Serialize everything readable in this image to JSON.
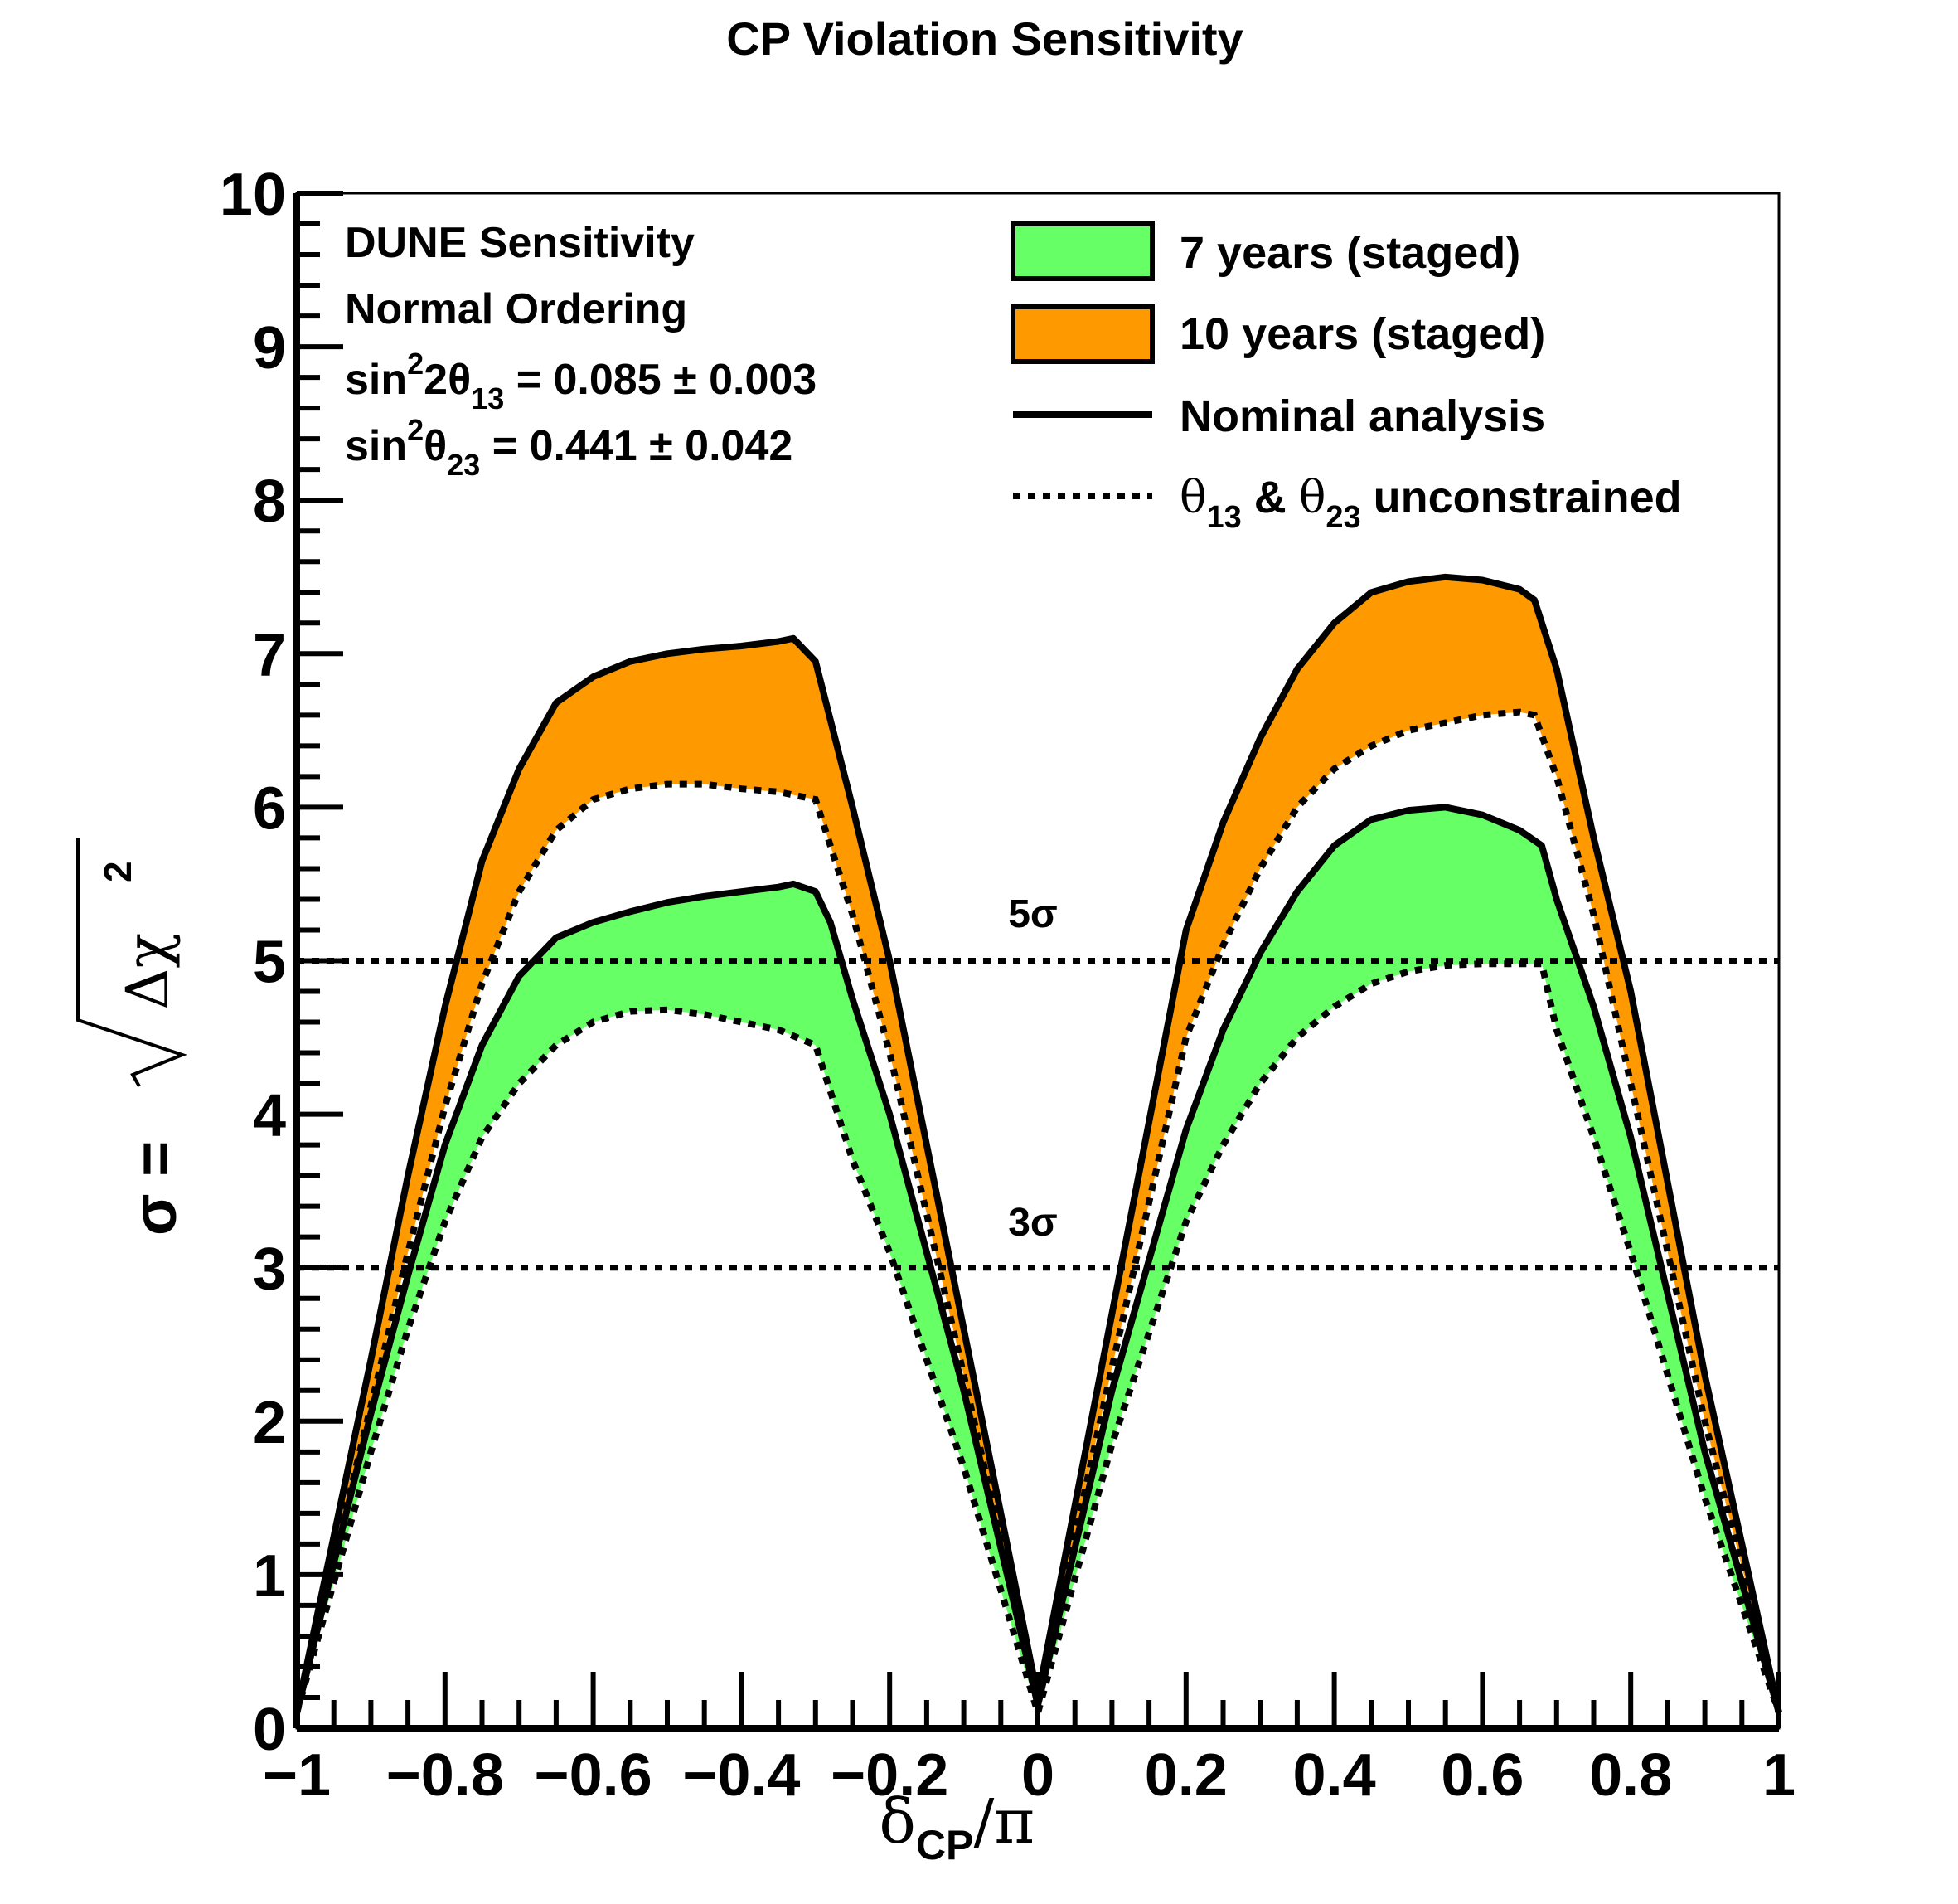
{
  "chart_data": {
    "type": "area",
    "title": "CP Violation Sensitivity",
    "xlabel": {
      "main": "δ",
      "sub": "CP",
      "suffix": "/π"
    },
    "ylabel": {
      "prefix": "σ = ",
      "radicand": "Δχ",
      "sup": "2"
    },
    "xlim": [
      -1,
      1
    ],
    "ylim": [
      0,
      10
    ],
    "x_ticks": [
      {
        "v": -1,
        "label": "−1"
      },
      {
        "v": -0.8,
        "label": "−0.8"
      },
      {
        "v": -0.6,
        "label": "−0.6"
      },
      {
        "v": -0.4,
        "label": "−0.4"
      },
      {
        "v": -0.2,
        "label": "−0.2"
      },
      {
        "v": 0,
        "label": "0"
      },
      {
        "v": 0.2,
        "label": "0.2"
      },
      {
        "v": 0.4,
        "label": "0.4"
      },
      {
        "v": 0.6,
        "label": "0.6"
      },
      {
        "v": 0.8,
        "label": "0.8"
      },
      {
        "v": 1,
        "label": "1"
      }
    ],
    "y_ticks": [
      {
        "v": 0,
        "label": "0"
      },
      {
        "v": 1,
        "label": "1"
      },
      {
        "v": 2,
        "label": "2"
      },
      {
        "v": 3,
        "label": "3"
      },
      {
        "v": 4,
        "label": "4"
      },
      {
        "v": 5,
        "label": "5"
      },
      {
        "v": 6,
        "label": "6"
      },
      {
        "v": 7,
        "label": "7"
      },
      {
        "v": 8,
        "label": "8"
      },
      {
        "v": 9,
        "label": "9"
      },
      {
        "v": 10,
        "label": "10"
      }
    ],
    "annotation_lines": [
      {
        "y": 5,
        "label": "5σ"
      },
      {
        "y": 3,
        "label": "3σ"
      }
    ],
    "info_text": {
      "line1": "DUNE Sensitivity",
      "line2": "Normal Ordering",
      "line3": {
        "pre": "sin",
        "sup": "2",
        "mid": "2θ",
        "sub": "13",
        "post": " = 0.085 ± 0.003"
      },
      "line4": {
        "pre": "sin",
        "sup": "2",
        "mid": "θ",
        "sub": "23",
        "post": " = 0.441 ± 0.042"
      }
    },
    "legend": {
      "placement": "top-right",
      "entries": [
        {
          "kind": "fill",
          "color": "#66ff66",
          "label": "7 years (staged)"
        },
        {
          "kind": "fill",
          "color": "#ff9900",
          "label": "10 years (staged)"
        },
        {
          "kind": "solid",
          "label": "Nominal analysis"
        },
        {
          "kind": "dotted",
          "parts": [
            {
              "t": "θ",
              "sub": "13"
            },
            {
              "t": " & ",
              "sub": ""
            },
            {
              "t": "θ",
              "sub": "23"
            },
            {
              "t": " unconstrained",
              "sub": ""
            }
          ]
        }
      ]
    },
    "series": [
      {
        "name": "10 years (staged)",
        "color": "#ff9900",
        "nominal": {
          "x": [
            -1,
            -0.9,
            -0.85,
            -0.8,
            -0.75,
            -0.7,
            -0.65,
            -0.6,
            -0.55,
            -0.5,
            -0.45,
            -0.4,
            -0.35,
            -0.33,
            -0.3,
            -0.25,
            -0.2,
            -0.1,
            0,
            0.1,
            0.2,
            0.25,
            0.3,
            0.35,
            0.4,
            0.45,
            0.5,
            0.55,
            0.6,
            0.65,
            0.67,
            0.7,
            0.75,
            0.8,
            0.9,
            1
          ],
          "y": [
            0.1,
            2.4,
            3.6,
            4.7,
            5.65,
            6.25,
            6.68,
            6.85,
            6.95,
            7.0,
            7.03,
            7.05,
            7.08,
            7.1,
            6.95,
            6.0,
            5.0,
            2.6,
            0.2,
            2.7,
            5.2,
            5.9,
            6.45,
            6.9,
            7.2,
            7.4,
            7.47,
            7.5,
            7.48,
            7.42,
            7.35,
            6.9,
            5.8,
            4.8,
            2.3,
            0.1
          ]
        },
        "unconstrained": {
          "x": [
            -1,
            -0.9,
            -0.85,
            -0.8,
            -0.75,
            -0.7,
            -0.65,
            -0.6,
            -0.55,
            -0.5,
            -0.45,
            -0.4,
            -0.35,
            -0.3,
            -0.25,
            -0.2,
            -0.1,
            0,
            0.1,
            0.2,
            0.25,
            0.3,
            0.35,
            0.4,
            0.45,
            0.5,
            0.55,
            0.6,
            0.65,
            0.67,
            0.7,
            0.75,
            0.8,
            0.9,
            1
          ],
          "y": [
            0.1,
            2.1,
            3.1,
            4.05,
            4.85,
            5.45,
            5.85,
            6.05,
            6.12,
            6.15,
            6.15,
            6.12,
            6.1,
            6.05,
            5.3,
            4.4,
            2.3,
            0.15,
            2.35,
            4.5,
            5.1,
            5.6,
            6.0,
            6.25,
            6.4,
            6.5,
            6.55,
            6.6,
            6.62,
            6.6,
            6.2,
            5.3,
            4.2,
            2.0,
            0.1
          ]
        }
      },
      {
        "name": "7 years (staged)",
        "color": "#66ff66",
        "nominal": {
          "x": [
            -1,
            -0.9,
            -0.85,
            -0.8,
            -0.75,
            -0.7,
            -0.65,
            -0.6,
            -0.55,
            -0.5,
            -0.45,
            -0.4,
            -0.35,
            -0.33,
            -0.3,
            -0.28,
            -0.25,
            -0.2,
            -0.1,
            0,
            0.1,
            0.2,
            0.25,
            0.3,
            0.35,
            0.4,
            0.45,
            0.5,
            0.55,
            0.6,
            0.65,
            0.68,
            0.7,
            0.75,
            0.8,
            0.9,
            1
          ],
          "y": [
            0.1,
            2.05,
            2.95,
            3.8,
            4.45,
            4.9,
            5.15,
            5.25,
            5.32,
            5.38,
            5.42,
            5.45,
            5.48,
            5.5,
            5.45,
            5.25,
            4.75,
            4.0,
            2.2,
            0.15,
            2.2,
            3.9,
            4.55,
            5.05,
            5.45,
            5.75,
            5.92,
            5.98,
            6.0,
            5.95,
            5.85,
            5.75,
            5.4,
            4.7,
            3.85,
            1.8,
            0.1
          ]
        },
        "unconstrained": {
          "x": [
            -1,
            -0.9,
            -0.85,
            -0.8,
            -0.75,
            -0.7,
            -0.65,
            -0.6,
            -0.55,
            -0.5,
            -0.45,
            -0.4,
            -0.35,
            -0.3,
            -0.25,
            -0.2,
            -0.1,
            0,
            0.1,
            0.2,
            0.25,
            0.3,
            0.35,
            0.4,
            0.45,
            0.5,
            0.55,
            0.6,
            0.65,
            0.68,
            0.7,
            0.75,
            0.8,
            0.9,
            1
          ],
          "y": [
            0.1,
            1.8,
            2.6,
            3.3,
            3.85,
            4.2,
            4.45,
            4.6,
            4.67,
            4.68,
            4.65,
            4.6,
            4.55,
            4.45,
            3.7,
            3.1,
            1.7,
            0.1,
            1.85,
            3.3,
            3.8,
            4.2,
            4.5,
            4.7,
            4.85,
            4.93,
            4.97,
            4.98,
            4.98,
            4.98,
            4.55,
            3.85,
            3.1,
            1.5,
            0.1
          ]
        }
      }
    ]
  }
}
